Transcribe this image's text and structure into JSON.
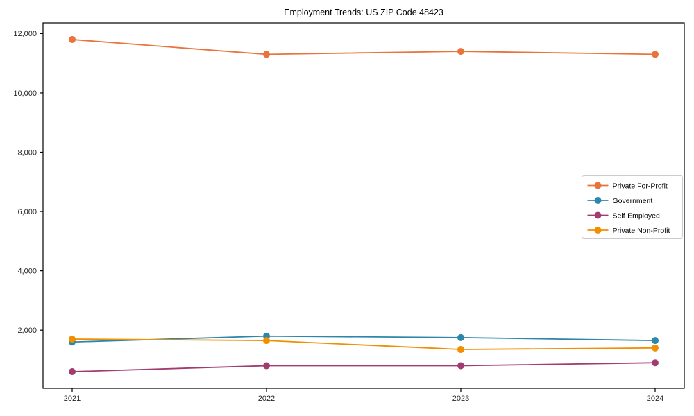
{
  "chart_data": {
    "type": "line",
    "title": "Employment Trends: US ZIP Code 48423",
    "xlabel": "",
    "ylabel": "",
    "x": [
      2021,
      2022,
      2023,
      2024
    ],
    "x_tick_labels": [
      "2021",
      "2022",
      "2023",
      "2024"
    ],
    "yticks": [
      2000,
      4000,
      6000,
      8000,
      10000,
      12000
    ],
    "ytick_labels": [
      "2,000",
      "4,000",
      "6,000",
      "8,000",
      "10,000",
      "12,000"
    ],
    "ylim": [
      40,
      12360
    ],
    "grid": false,
    "legend_position": "center right",
    "marker": "circle",
    "axis_color": "#000000",
    "tick_label_color": "#262626",
    "legend_border_color": "#cccccc",
    "series": [
      {
        "name": "Private For-Profit",
        "color": "#E8743B",
        "values": [
          11800,
          11300,
          11400,
          11300
        ]
      },
      {
        "name": "Government",
        "color": "#2E86AB",
        "values": [
          1600,
          1800,
          1750,
          1650
        ]
      },
      {
        "name": "Self-Employed",
        "color": "#A23B72",
        "values": [
          600,
          800,
          800,
          900
        ]
      },
      {
        "name": "Private Non-Profit",
        "color": "#F18F01",
        "values": [
          1700,
          1650,
          1350,
          1400
        ]
      }
    ]
  }
}
